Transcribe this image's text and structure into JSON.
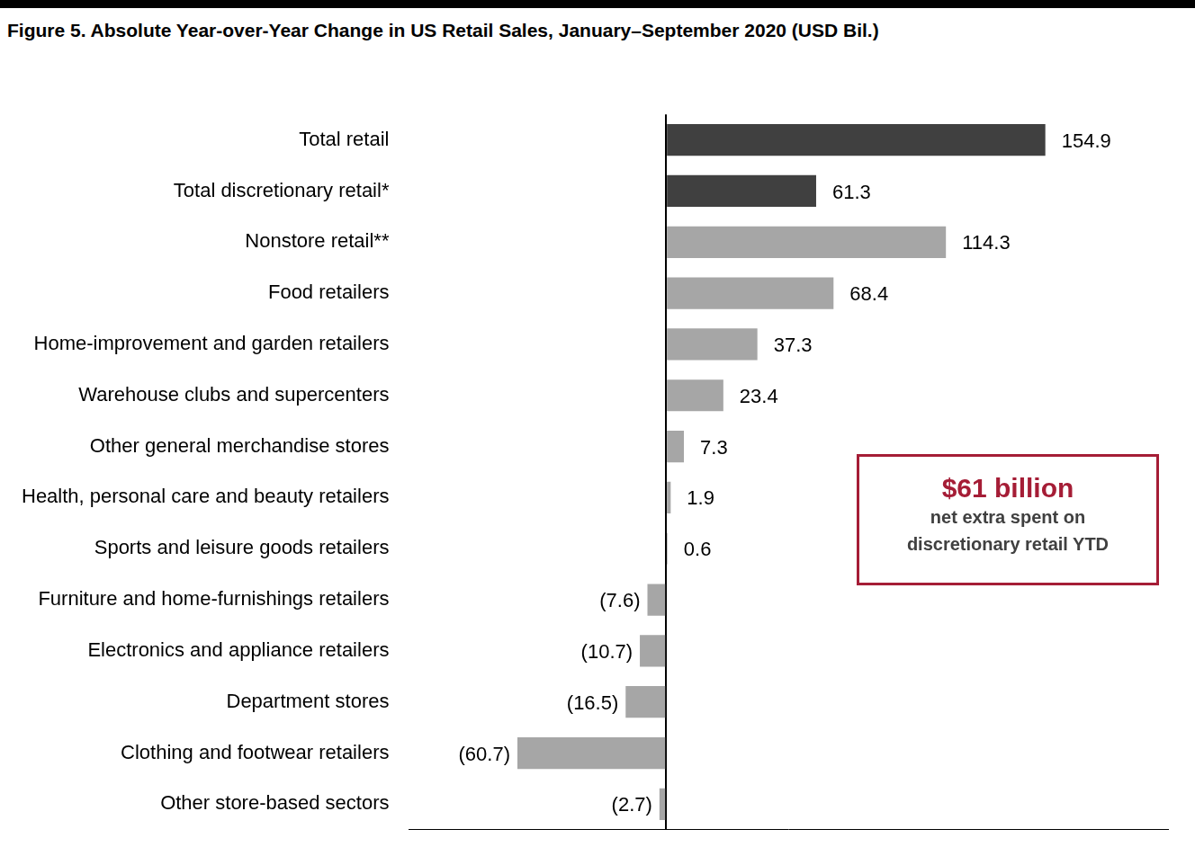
{
  "chart_data": {
    "type": "bar",
    "orientation": "horizontal",
    "title": "Figure 5. Absolute Year-over-Year Change in US Retail Sales, January–September 2020 (USD Bil.)",
    "categories": [
      "Total retail",
      "Total discretionary retail*",
      "Nonstore retail**",
      "Food retailers",
      "Home-improvement and garden retailers",
      "Warehouse clubs and supercenters",
      "Other general merchandise stores",
      "Health, personal care and beauty retailers",
      "Sports and leisure goods retailers",
      "Furniture and home-furnishings retailers",
      "Electronics and appliance retailers",
      "Department stores",
      "Clothing and footwear retailers",
      "Other store-based sectors"
    ],
    "values": [
      154.9,
      61.3,
      114.3,
      68.4,
      37.3,
      23.4,
      7.3,
      1.9,
      0.6,
      -7.6,
      -10.7,
      -16.5,
      -60.7,
      -2.7
    ],
    "value_labels": [
      "154.9",
      "61.3",
      "114.3",
      "68.4",
      "37.3",
      "23.4",
      "7.3",
      "1.9",
      "0.6",
      "(7.6)",
      "(10.7)",
      "(16.5)",
      "(60.7)",
      "(2.7)"
    ],
    "colors": [
      "#404040",
      "#404040",
      "#a6a6a6",
      "#a6a6a6",
      "#a6a6a6",
      "#a6a6a6",
      "#a6a6a6",
      "#a6a6a6",
      "#a6a6a6",
      "#a6a6a6",
      "#a6a6a6",
      "#a6a6a6",
      "#a6a6a6",
      "#a6a6a6"
    ],
    "xlim": [
      -105,
      205
    ],
    "xticks": [
      0
    ],
    "grid": true,
    "data_labels": true,
    "tick_labels": "y",
    "annotation": {
      "title": "$61 billion",
      "text": [
        "net extra spent on",
        "discretionary retail YTD"
      ]
    }
  }
}
